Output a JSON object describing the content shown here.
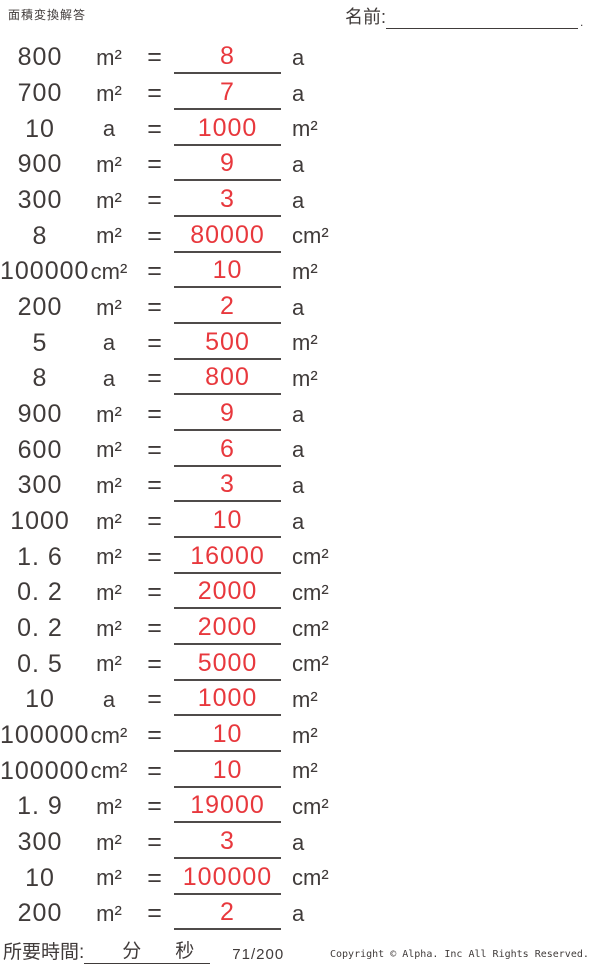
{
  "header": {
    "title": "面積変換解答",
    "name_label": "名前:",
    "name_trailing_dot": "."
  },
  "rows": [
    {
      "value": "800",
      "unit": "m²",
      "equals": "=",
      "answer": "8",
      "result_unit": "a"
    },
    {
      "value": "700",
      "unit": "m²",
      "equals": "=",
      "answer": "7",
      "result_unit": "a"
    },
    {
      "value": "10",
      "unit": "a",
      "equals": "=",
      "answer": "1000",
      "result_unit": "m²"
    },
    {
      "value": "900",
      "unit": "m²",
      "equals": "=",
      "answer": "9",
      "result_unit": "a"
    },
    {
      "value": "300",
      "unit": "m²",
      "equals": "=",
      "answer": "3",
      "result_unit": "a"
    },
    {
      "value": "8",
      "unit": "m²",
      "equals": "=",
      "answer": "80000",
      "result_unit": "cm²"
    },
    {
      "value": "100000",
      "unit": "cm²",
      "equals": "=",
      "answer": "10",
      "result_unit": "m²"
    },
    {
      "value": "200",
      "unit": "m²",
      "equals": "=",
      "answer": "2",
      "result_unit": "a"
    },
    {
      "value": "5",
      "unit": "a",
      "equals": "=",
      "answer": "500",
      "result_unit": "m²"
    },
    {
      "value": "8",
      "unit": "a",
      "equals": "=",
      "answer": "800",
      "result_unit": "m²"
    },
    {
      "value": "900",
      "unit": "m²",
      "equals": "=",
      "answer": "9",
      "result_unit": "a"
    },
    {
      "value": "600",
      "unit": "m²",
      "equals": "=",
      "answer": "6",
      "result_unit": "a"
    },
    {
      "value": "300",
      "unit": "m²",
      "equals": "=",
      "answer": "3",
      "result_unit": "a"
    },
    {
      "value": "1000",
      "unit": "m²",
      "equals": "=",
      "answer": "10",
      "result_unit": "a"
    },
    {
      "value": "1. 6",
      "unit": "m²",
      "equals": "=",
      "answer": "16000",
      "result_unit": "cm²"
    },
    {
      "value": "0. 2",
      "unit": "m²",
      "equals": "=",
      "answer": "2000",
      "result_unit": "cm²"
    },
    {
      "value": "0. 2",
      "unit": "m²",
      "equals": "=",
      "answer": "2000",
      "result_unit": "cm²"
    },
    {
      "value": "0. 5",
      "unit": "m²",
      "equals": "=",
      "answer": "5000",
      "result_unit": "cm²"
    },
    {
      "value": "10",
      "unit": "a",
      "equals": "=",
      "answer": "1000",
      "result_unit": "m²"
    },
    {
      "value": "100000",
      "unit": "cm²",
      "equals": "=",
      "answer": "10",
      "result_unit": "m²"
    },
    {
      "value": "100000",
      "unit": "cm²",
      "equals": "=",
      "answer": "10",
      "result_unit": "m²"
    },
    {
      "value": "1. 9",
      "unit": "m²",
      "equals": "=",
      "answer": "19000",
      "result_unit": "cm²"
    },
    {
      "value": "300",
      "unit": "m²",
      "equals": "=",
      "answer": "3",
      "result_unit": "a"
    },
    {
      "value": "10",
      "unit": "m²",
      "equals": "=",
      "answer": "100000",
      "result_unit": "cm²"
    },
    {
      "value": "200",
      "unit": "m²",
      "equals": "=",
      "answer": "2",
      "result_unit": "a"
    }
  ],
  "footer": {
    "time_label": "所要時間:",
    "minutes_label": "分",
    "seconds_label": "秒",
    "page_number": "71/200",
    "copyright": "Copyright © Alpha. Inc All Rights Reserved."
  },
  "colors": {
    "text": "#403b3a",
    "answer_red": "#e8383d",
    "underline": "#4f4b4a"
  }
}
